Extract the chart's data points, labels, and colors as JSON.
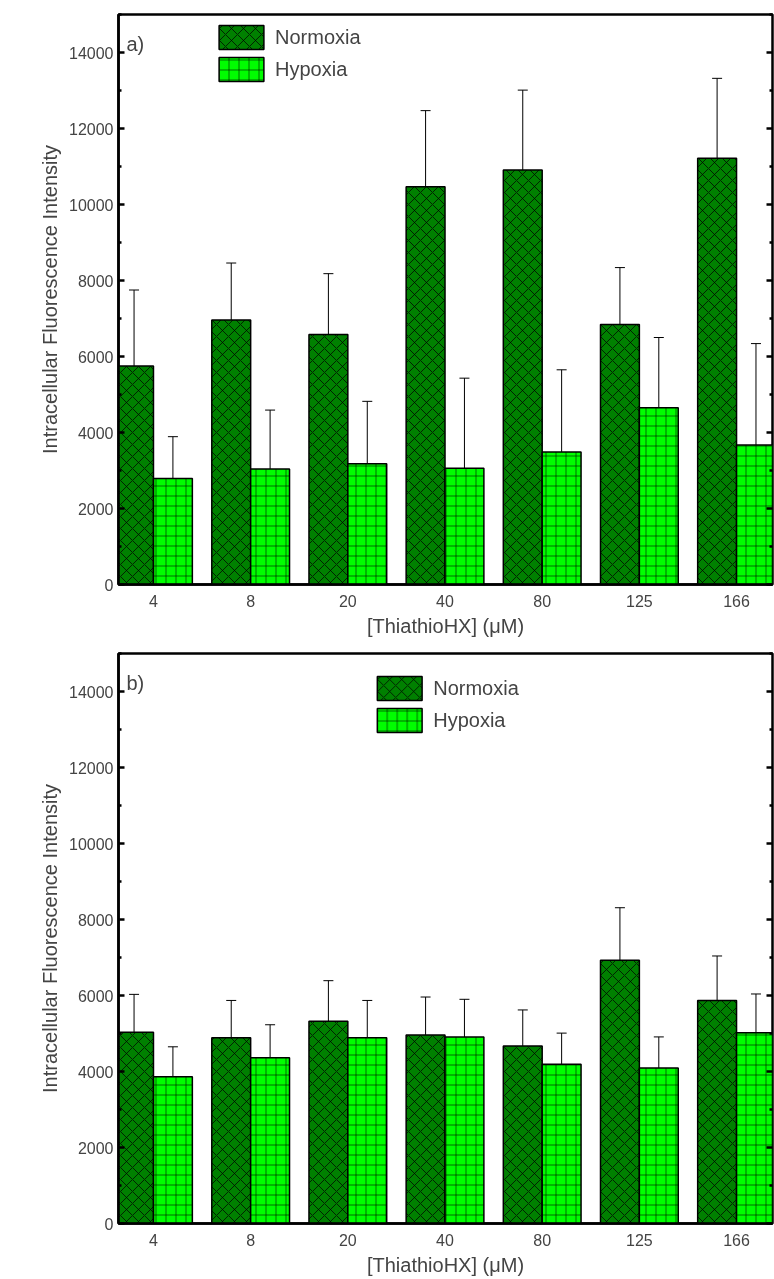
{
  "chart_data": [
    {
      "type": "bar",
      "annotations": [
        "a)"
      ],
      "xlabel": "[ThiathioHX] (μM)",
      "ylabel": "Intracellular Fluorescence Intensity",
      "categories": [
        "4",
        "8",
        "20",
        "40",
        "80",
        "125",
        "166"
      ],
      "ylim": [
        0,
        15000
      ],
      "yticks": [
        0,
        2000,
        4000,
        6000,
        8000,
        10000,
        12000,
        14000
      ],
      "legend": "top left",
      "grid": false,
      "series": [
        {
          "name": "Normoxia",
          "color": "#008000",
          "values": [
            5750,
            6960,
            6580,
            10470,
            10910,
            6840,
            11220
          ],
          "errors": [
            2000,
            1500,
            1600,
            2000,
            2100,
            1500,
            2100
          ]
        },
        {
          "name": "Hypoxia",
          "color": "#00ff00",
          "values": [
            2790,
            3040,
            3180,
            3060,
            3490,
            4650,
            3670
          ],
          "errors": [
            1100,
            1550,
            1640,
            2370,
            2160,
            1850,
            2670
          ]
        }
      ]
    },
    {
      "type": "bar",
      "annotations": [
        "b)"
      ],
      "xlabel": "[ThiathioHX] (μM)",
      "ylabel": "Intracellular Fluorescence Intensity",
      "categories": [
        "4",
        "8",
        "20",
        "40",
        "80",
        "125",
        "166"
      ],
      "ylim": [
        0,
        15000
      ],
      "yticks": [
        0,
        2000,
        4000,
        6000,
        8000,
        10000,
        12000,
        14000
      ],
      "legend": "top",
      "grid": false,
      "series": [
        {
          "name": "Normoxia",
          "color": "#008000",
          "values": [
            5030,
            4890,
            5320,
            4960,
            4670,
            6930,
            5870
          ],
          "errors": [
            1000,
            980,
            1070,
            1000,
            950,
            1380,
            1170
          ]
        },
        {
          "name": "Hypoxia",
          "color": "#00ff00",
          "values": [
            3860,
            4360,
            4890,
            4910,
            4190,
            4090,
            5020
          ],
          "errors": [
            790,
            870,
            980,
            990,
            820,
            820,
            1020
          ]
        }
      ]
    }
  ]
}
